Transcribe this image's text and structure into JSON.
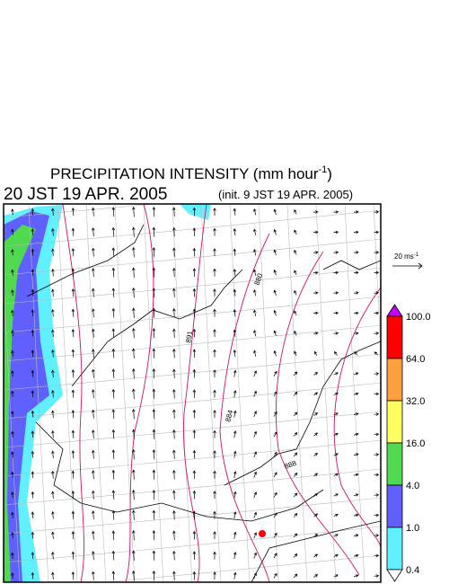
{
  "header": {
    "title_main": "PRECIPITATION INTENSITY (mm hour",
    "title_exp": "-1",
    "title_close": ")",
    "valid_time": "20 JST 19 APR. 2005",
    "init_time": "(init. 9 JST 19 APR. 2005)"
  },
  "wind_scale": {
    "label_main": "20 ms",
    "label_exp": "-1"
  },
  "colorbar": {
    "labels": [
      "100.0",
      "64.0",
      "32.0",
      "16.0",
      "4.0",
      "1.0",
      "0.4"
    ],
    "colors": [
      "#ff0000",
      "#ffa040",
      "#ffff60",
      "#50d850",
      "#6060ff",
      "#60f0ff"
    ],
    "over_color": "#c000ff",
    "under_color": "#ffffff"
  },
  "contour_labels": [
    "880",
    "891",
    "884",
    "888"
  ]
}
